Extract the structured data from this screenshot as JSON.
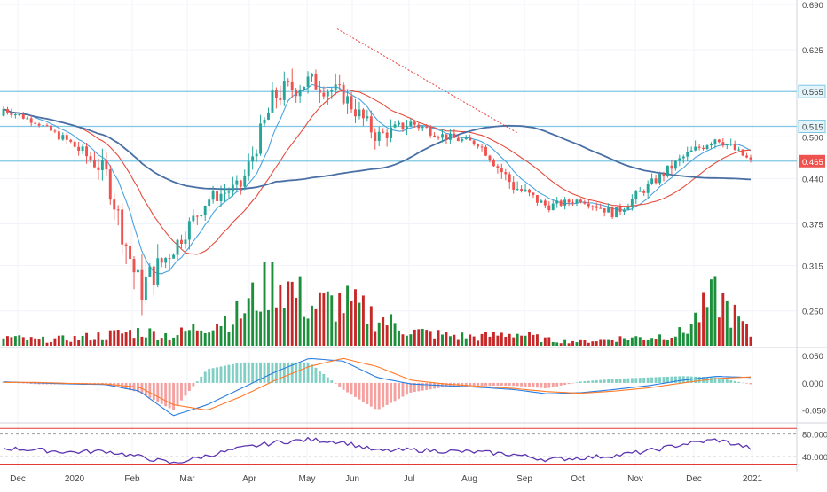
{
  "colors": {
    "up": "#26a69a",
    "up_volume": "#1b8f3a",
    "down": "#ef5350",
    "down_volume": "#c62828",
    "ma_fast": "#4aa3df",
    "ma_mid": "#e64a3c",
    "ma_slow": "#4a6fa5",
    "hline": "#7ec8e3",
    "trend": "#e53935",
    "macd": "#2a7de1",
    "signal": "#ff7a29",
    "rsi": "#5e35b1",
    "rsi_band": "#e53935",
    "grid": "#f0f3fa",
    "axis_text": "#444444",
    "price_label_bg": "#ef5350"
  },
  "chart_data": [
    {
      "type": "candlestick",
      "panel": "price",
      "y_ticks": [
        "0.690",
        "0.625",
        "0.565",
        "0.515",
        "0.500",
        "0.465",
        "0.440",
        "0.375",
        "0.315",
        "0.250"
      ],
      "ylim": [
        0.2,
        0.69
      ],
      "x_ticks": [
        "Dec",
        "2020",
        "Feb",
        "Mar",
        "Apr",
        "May",
        "Jun",
        "Jul",
        "Aug",
        "Sep",
        "Oct",
        "Nov",
        "Dec",
        "2021"
      ],
      "horizontal_lines": [
        {
          "value": 0.565,
          "label": "0.565"
        },
        {
          "value": 0.515,
          "label": "0.515"
        },
        {
          "value": 0.465,
          "label": "0.465"
        }
      ],
      "last_price": {
        "value": 0.465,
        "label": "0.465"
      },
      "trendline": {
        "from": {
          "month": "May",
          "value": 0.655
        },
        "to": {
          "month": "Aug",
          "value": 0.505
        }
      },
      "series": [
        {
          "kind": "ohlc",
          "points": [
            {
              "x": "Dec",
              "o": 0.53,
              "h": 0.56,
              "l": 0.515,
              "c": 0.54
            },
            {
              "x": "2020",
              "o": 0.535,
              "h": 0.545,
              "l": 0.515,
              "c": 0.52
            },
            {
              "x": "Feb",
              "o": 0.515,
              "h": 0.53,
              "l": 0.47,
              "c": 0.49
            },
            {
              "x": "Mar",
              "o": 0.535,
              "h": 0.55,
              "l": 0.43,
              "c": 0.45
            },
            {
              "x": "Mar",
              "o": 0.45,
              "h": 0.46,
              "l": 0.24,
              "c": 0.28
            },
            {
              "x": "Apr",
              "o": 0.28,
              "h": 0.36,
              "l": 0.25,
              "c": 0.34
            },
            {
              "x": "Apr",
              "o": 0.34,
              "h": 0.42,
              "l": 0.33,
              "c": 0.41
            },
            {
              "x": "May",
              "o": 0.41,
              "h": 0.48,
              "l": 0.4,
              "c": 0.43
            },
            {
              "x": "May",
              "o": 0.43,
              "h": 0.58,
              "l": 0.42,
              "c": 0.56
            },
            {
              "x": "Jun",
              "o": 0.56,
              "h": 0.655,
              "l": 0.54,
              "c": 0.58
            },
            {
              "x": "Jun",
              "o": 0.58,
              "h": 0.64,
              "l": 0.53,
              "c": 0.56
            },
            {
              "x": "Jul",
              "o": 0.56,
              "h": 0.57,
              "l": 0.47,
              "c": 0.5
            },
            {
              "x": "Jul",
              "o": 0.5,
              "h": 0.54,
              "l": 0.48,
              "c": 0.52
            },
            {
              "x": "Aug",
              "o": 0.52,
              "h": 0.53,
              "l": 0.48,
              "c": 0.5
            },
            {
              "x": "Aug",
              "o": 0.5,
              "h": 0.51,
              "l": 0.47,
              "c": 0.49
            },
            {
              "x": "Sep",
              "o": 0.49,
              "h": 0.5,
              "l": 0.41,
              "c": 0.43
            },
            {
              "x": "Oct",
              "o": 0.43,
              "h": 0.44,
              "l": 0.39,
              "c": 0.4
            },
            {
              "x": "Oct",
              "o": 0.4,
              "h": 0.42,
              "l": 0.385,
              "c": 0.41
            },
            {
              "x": "Nov",
              "o": 0.41,
              "h": 0.42,
              "l": 0.36,
              "c": 0.39
            },
            {
              "x": "Nov",
              "o": 0.39,
              "h": 0.44,
              "l": 0.385,
              "c": 0.43
            },
            {
              "x": "Dec",
              "o": 0.43,
              "h": 0.48,
              "l": 0.42,
              "c": 0.47
            },
            {
              "x": "Dec",
              "o": 0.47,
              "h": 0.525,
              "l": 0.46,
              "c": 0.5
            },
            {
              "x": "2021",
              "o": 0.48,
              "h": 0.49,
              "l": 0.455,
              "c": 0.465
            }
          ]
        }
      ]
    },
    {
      "type": "bar",
      "panel": "volume",
      "series": [
        {
          "values": [
            0.12,
            0.08,
            0.1,
            0.15,
            0.2,
            0.14,
            0.3,
            0.45,
            1.0,
            0.55,
            0.6,
            0.4,
            0.2,
            0.15,
            0.12,
            0.18,
            0.08,
            0.06,
            0.1,
            0.12,
            0.18,
            0.7,
            0.15
          ]
        }
      ]
    },
    {
      "type": "line",
      "panel": "macd",
      "y_ticks": [
        "0.050",
        "0.000",
        "-0.050"
      ],
      "ylim": [
        -0.07,
        0.06
      ],
      "series": [
        {
          "kind": "macd",
          "values": [
            0.002,
            0.0,
            -0.002,
            -0.003,
            -0.015,
            -0.06,
            -0.04,
            -0.01,
            0.02,
            0.045,
            0.04,
            0.01,
            -0.002,
            -0.005,
            -0.008,
            -0.012,
            -0.02,
            -0.018,
            -0.012,
            -0.005,
            0.005,
            0.012,
            0.01
          ]
        },
        {
          "kind": "signal",
          "values": [
            0.001,
            0.001,
            -0.001,
            -0.002,
            -0.008,
            -0.04,
            -0.05,
            -0.025,
            0.005,
            0.03,
            0.045,
            0.03,
            0.005,
            -0.002,
            -0.006,
            -0.01,
            -0.016,
            -0.019,
            -0.015,
            -0.009,
            0.0,
            0.008,
            0.011
          ]
        }
      ]
    },
    {
      "type": "line",
      "panel": "rsi",
      "y_ticks": [
        "80.000",
        "40.000"
      ],
      "ylim": [
        20,
        95
      ],
      "series": [
        {
          "values": [
            55,
            52,
            48,
            50,
            40,
            28,
            42,
            55,
            65,
            70,
            66,
            50,
            52,
            50,
            48,
            44,
            35,
            38,
            42,
            50,
            62,
            70,
            55
          ]
        }
      ]
    }
  ]
}
